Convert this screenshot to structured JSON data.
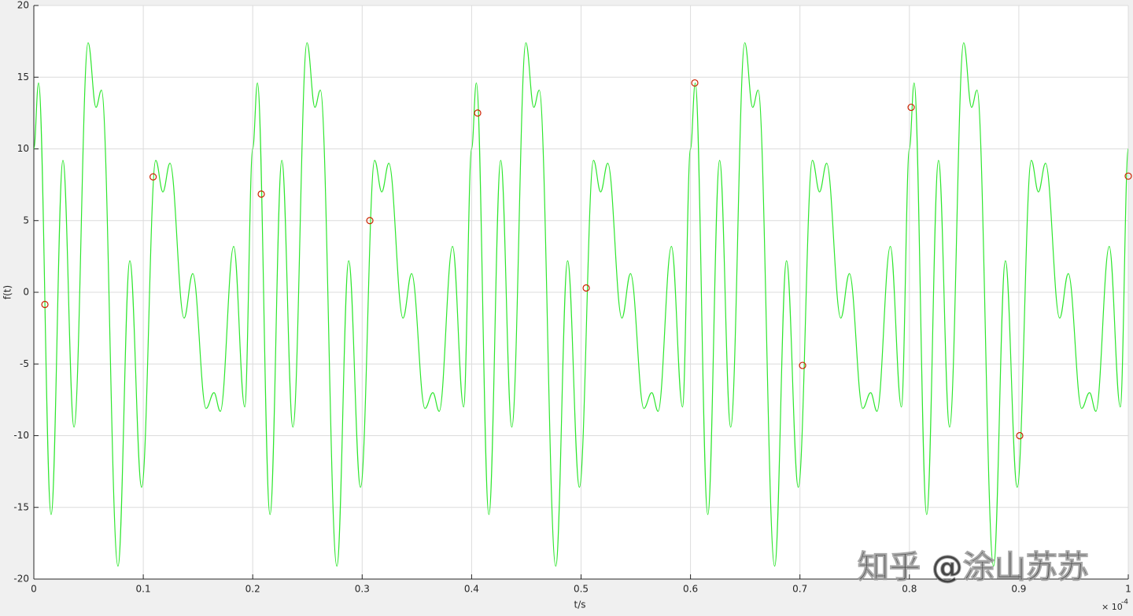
{
  "chart_data": {
    "type": "line",
    "xlabel": "t/s",
    "ylabel": "f(t)",
    "x_exponent": {
      "base": "× 10",
      "power": "-4"
    },
    "watermark": "知乎 @涂山苏苏",
    "xlim": [
      0,
      1
    ],
    "ylim": [
      -20,
      20
    ],
    "xticks": [
      0,
      0.1,
      0.2,
      0.3,
      0.4,
      0.5,
      0.6,
      0.7,
      0.8,
      0.9,
      1
    ],
    "yticks": [
      -20,
      -15,
      -10,
      -5,
      0,
      5,
      10,
      15,
      20
    ],
    "grid": true,
    "series": [
      {
        "color": "#2ee62e",
        "x": [
          0,
          0.0043,
          0.0158,
          0.0266,
          0.0367,
          0.0496,
          0.0568,
          0.0618,
          0.0769,
          0.0877,
          0.0985,
          0.1114,
          0.1179,
          0.1244,
          0.1373,
          0.1452,
          0.1574,
          0.1646,
          0.1704,
          0.1826,
          0.1927,
          0.2,
          0.2043,
          0.2158,
          0.2266,
          0.2367,
          0.2496,
          0.2568,
          0.2618,
          0.2769,
          0.2877,
          0.2985,
          0.3114,
          0.3179,
          0.3244,
          0.3373,
          0.3452,
          0.3574,
          0.3646,
          0.3704,
          0.3826,
          0.3927,
          0.4,
          0.4043,
          0.4158,
          0.4266,
          0.4367,
          0.4496,
          0.4568,
          0.4618,
          0.4769,
          0.4877,
          0.4985,
          0.5114,
          0.5179,
          0.5244,
          0.5373,
          0.5452,
          0.5574,
          0.5646,
          0.5704,
          0.5826,
          0.5927,
          0.6,
          0.6043,
          0.6158,
          0.6266,
          0.6367,
          0.6496,
          0.6568,
          0.6618,
          0.6769,
          0.6877,
          0.6985,
          0.7114,
          0.7179,
          0.7244,
          0.7373,
          0.7452,
          0.7574,
          0.7646,
          0.7704,
          0.7826,
          0.7927,
          0.8,
          0.8043,
          0.8158,
          0.8266,
          0.8367,
          0.8496,
          0.8568,
          0.8618,
          0.8769,
          0.8877,
          0.8985,
          0.9114,
          0.9179,
          0.9244,
          0.9373,
          0.9452,
          0.9574,
          0.9646,
          0.9704,
          0.9826,
          0.9927,
          1
        ],
        "values": [
          10,
          14.6,
          -15.5,
          9.2,
          -9.4,
          17.4,
          12.9,
          14.1,
          -19.1,
          2.2,
          -13.6,
          9.2,
          7.0,
          9.0,
          -1.8,
          1.3,
          -8.1,
          -7.0,
          -8.3,
          3.2,
          -8.0,
          10,
          14.6,
          -15.5,
          9.2,
          -9.4,
          17.4,
          12.9,
          14.1,
          -19.1,
          2.2,
          -13.6,
          9.2,
          7.0,
          9.0,
          -1.8,
          1.3,
          -8.1,
          -7.0,
          -8.3,
          3.2,
          -8.0,
          10,
          14.6,
          -15.5,
          9.2,
          -9.4,
          17.4,
          12.9,
          14.1,
          -19.1,
          2.2,
          -13.6,
          9.2,
          7.0,
          9.0,
          -1.8,
          1.3,
          -8.1,
          -7.0,
          -8.3,
          3.2,
          -8.0,
          10,
          14.6,
          -15.5,
          9.2,
          -9.4,
          17.4,
          12.9,
          14.1,
          -19.1,
          2.2,
          -13.6,
          9.2,
          7.0,
          9.0,
          -1.8,
          1.3,
          -8.1,
          -7.0,
          -8.3,
          3.2,
          -8.0,
          10,
          14.6,
          -15.5,
          9.2,
          -9.4,
          17.4,
          12.9,
          14.1,
          -19.1,
          2.2,
          -13.6,
          9.2,
          7.0,
          9.0,
          -1.8,
          1.3,
          -8.1,
          -7.0,
          -8.3,
          3.2,
          -8.0,
          10
        ]
      },
      {
        "color": "#cc2200",
        "marker": "circle",
        "x": [
          0.0101,
          0.109,
          0.2078,
          0.307,
          0.4055,
          0.5047,
          0.6039,
          0.7024,
          0.8016,
          0.9008,
          1
        ],
        "values": [
          -0.85,
          8.05,
          6.85,
          5.0,
          12.5,
          0.3,
          14.6,
          -5.1,
          12.9,
          -10.0,
          8.1
        ]
      }
    ]
  }
}
